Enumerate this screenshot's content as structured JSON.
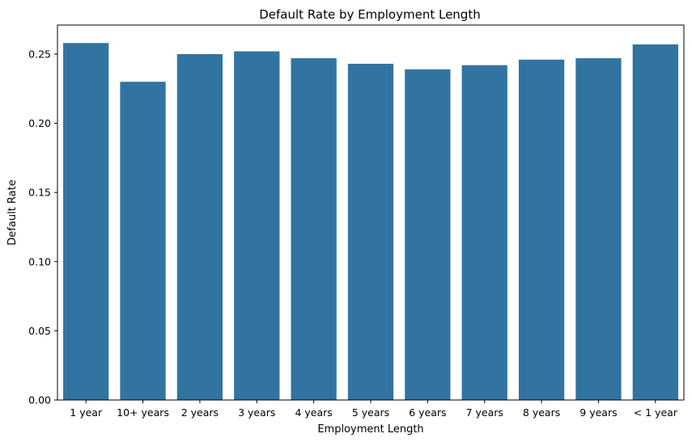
{
  "chart_data": {
    "type": "bar",
    "title": "Default Rate by Employment Length",
    "xlabel": "Employment Length",
    "ylabel": "Default Rate",
    "categories": [
      "1 year",
      "10+ years",
      "2 years",
      "3 years",
      "4 years",
      "5 years",
      "6 years",
      "7 years",
      "8 years",
      "9 years",
      "< 1 year"
    ],
    "values": [
      0.258,
      0.23,
      0.25,
      0.252,
      0.247,
      0.243,
      0.239,
      0.242,
      0.246,
      0.247,
      0.257
    ],
    "ylim": [
      0,
      0.271
    ],
    "yticks": [
      0.0,
      0.05,
      0.1,
      0.15,
      0.2,
      0.25
    ],
    "ytick_labels": [
      "0.00",
      "0.05",
      "0.10",
      "0.15",
      "0.20",
      "0.25"
    ],
    "bar_color": "#3274a1",
    "grid": false,
    "legend": false
  }
}
